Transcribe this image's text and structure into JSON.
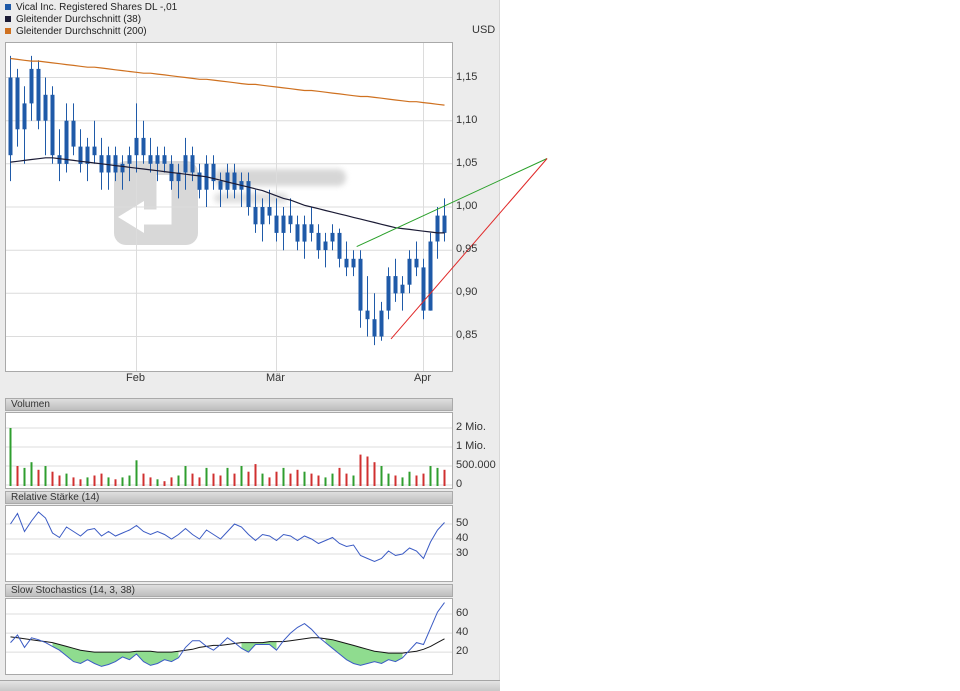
{
  "chart_data": [
    {
      "id": "price",
      "type": "candlestick",
      "title": "Vical Inc. Registered Shares DL -,01",
      "unit": "USD",
      "ylim": [
        0.81,
        1.19
      ],
      "candle_color": "#1f5aa8",
      "yticks": [
        {
          "value": 1.15,
          "label": "1,15"
        },
        {
          "value": 1.1,
          "label": "1,10"
        },
        {
          "value": 1.05,
          "label": "1,05"
        },
        {
          "value": 1.0,
          "label": "1,00"
        },
        {
          "value": 0.95,
          "label": "0,95"
        },
        {
          "value": 0.9,
          "label": "0,90"
        },
        {
          "value": 0.85,
          "label": "0,85"
        }
      ],
      "xticks": [
        {
          "i": 18,
          "label": "Feb"
        },
        {
          "i": 38,
          "label": "Mär"
        },
        {
          "i": 59,
          "label": "Apr"
        }
      ],
      "candles_ohlc": [
        [
          1.06,
          1.175,
          1.03,
          1.15
        ],
        [
          1.15,
          1.16,
          1.07,
          1.09
        ],
        [
          1.09,
          1.14,
          1.05,
          1.12
        ],
        [
          1.12,
          1.175,
          1.1,
          1.16
        ],
        [
          1.16,
          1.17,
          1.09,
          1.1
        ],
        [
          1.1,
          1.15,
          1.06,
          1.13
        ],
        [
          1.13,
          1.14,
          1.05,
          1.06
        ],
        [
          1.06,
          1.09,
          1.03,
          1.05
        ],
        [
          1.05,
          1.12,
          1.04,
          1.1
        ],
        [
          1.1,
          1.12,
          1.06,
          1.07
        ],
        [
          1.07,
          1.09,
          1.04,
          1.05
        ],
        [
          1.05,
          1.08,
          1.03,
          1.07
        ],
        [
          1.07,
          1.1,
          1.05,
          1.06
        ],
        [
          1.06,
          1.08,
          1.02,
          1.04
        ],
        [
          1.04,
          1.07,
          1.02,
          1.06
        ],
        [
          1.06,
          1.07,
          1.03,
          1.04
        ],
        [
          1.04,
          1.06,
          1.02,
          1.05
        ],
        [
          1.05,
          1.07,
          1.03,
          1.06
        ],
        [
          1.06,
          1.12,
          1.04,
          1.08
        ],
        [
          1.08,
          1.1,
          1.05,
          1.06
        ],
        [
          1.06,
          1.08,
          1.04,
          1.05
        ],
        [
          1.05,
          1.07,
          1.03,
          1.06
        ],
        [
          1.06,
          1.07,
          1.04,
          1.05
        ],
        [
          1.05,
          1.06,
          1.02,
          1.03
        ],
        [
          1.03,
          1.05,
          1.01,
          1.04
        ],
        [
          1.04,
          1.08,
          1.02,
          1.06
        ],
        [
          1.06,
          1.07,
          1.03,
          1.04
        ],
        [
          1.04,
          1.05,
          1.01,
          1.02
        ],
        [
          1.02,
          1.06,
          1.0,
          1.05
        ],
        [
          1.05,
          1.06,
          1.02,
          1.03
        ],
        [
          1.03,
          1.04,
          1.0,
          1.02
        ],
        [
          1.02,
          1.05,
          1.01,
          1.04
        ],
        [
          1.04,
          1.05,
          1.01,
          1.02
        ],
        [
          1.02,
          1.04,
          1.0,
          1.03
        ],
        [
          1.03,
          1.04,
          0.99,
          1.0
        ],
        [
          1.0,
          1.02,
          0.97,
          0.98
        ],
        [
          0.98,
          1.01,
          0.96,
          1.0
        ],
        [
          1.0,
          1.02,
          0.98,
          0.99
        ],
        [
          0.99,
          1.01,
          0.96,
          0.97
        ],
        [
          0.97,
          1.0,
          0.95,
          0.99
        ],
        [
          0.99,
          1.01,
          0.97,
          0.98
        ],
        [
          0.98,
          0.99,
          0.95,
          0.96
        ],
        [
          0.96,
          0.99,
          0.94,
          0.98
        ],
        [
          0.98,
          1.0,
          0.96,
          0.97
        ],
        [
          0.97,
          0.98,
          0.94,
          0.95
        ],
        [
          0.95,
          0.97,
          0.93,
          0.96
        ],
        [
          0.96,
          0.98,
          0.95,
          0.97
        ],
        [
          0.97,
          0.975,
          0.93,
          0.94
        ],
        [
          0.94,
          0.96,
          0.92,
          0.93
        ],
        [
          0.93,
          0.95,
          0.92,
          0.94
        ],
        [
          0.94,
          0.95,
          0.86,
          0.88
        ],
        [
          0.88,
          0.92,
          0.85,
          0.87
        ],
        [
          0.87,
          0.9,
          0.84,
          0.85
        ],
        [
          0.85,
          0.89,
          0.845,
          0.88
        ],
        [
          0.88,
          0.93,
          0.87,
          0.92
        ],
        [
          0.92,
          0.94,
          0.89,
          0.9
        ],
        [
          0.9,
          0.92,
          0.88,
          0.91
        ],
        [
          0.91,
          0.95,
          0.9,
          0.94
        ],
        [
          0.94,
          0.96,
          0.92,
          0.93
        ],
        [
          0.93,
          0.94,
          0.87,
          0.88
        ],
        [
          0.88,
          0.97,
          0.88,
          0.96
        ],
        [
          0.96,
          1.0,
          0.94,
          0.99
        ],
        [
          0.99,
          1.01,
          0.96,
          0.97
        ]
      ],
      "series": [
        {
          "name": "Gleitender Durchschnitt (38)",
          "color": "#1b1b35",
          "values": [
            1.052,
            1.053,
            1.054,
            1.055,
            1.056,
            1.057,
            1.057,
            1.056,
            1.055,
            1.054,
            1.053,
            1.052,
            1.051,
            1.05,
            1.049,
            1.048,
            1.047,
            1.046,
            1.045,
            1.044,
            1.043,
            1.042,
            1.041,
            1.04,
            1.039,
            1.038,
            1.037,
            1.036,
            1.035,
            1.033,
            1.031,
            1.029,
            1.027,
            1.025,
            1.023,
            1.021,
            1.019,
            1.016,
            1.013,
            1.01,
            1.008,
            1.005,
            1.002,
            1.0,
            0.998,
            0.996,
            0.994,
            0.992,
            0.99,
            0.988,
            0.986,
            0.984,
            0.982,
            0.98,
            0.978,
            0.976,
            0.975,
            0.974,
            0.973,
            0.972,
            0.971,
            0.97,
            0.97
          ]
        },
        {
          "name": "Gleitender Durchschnitt (200)",
          "color": "#cf7120",
          "values": [
            1.172,
            1.171,
            1.17,
            1.169,
            1.169,
            1.168,
            1.167,
            1.166,
            1.165,
            1.164,
            1.163,
            1.162,
            1.162,
            1.161,
            1.16,
            1.159,
            1.158,
            1.157,
            1.156,
            1.155,
            1.155,
            1.154,
            1.153,
            1.152,
            1.151,
            1.15,
            1.149,
            1.148,
            1.148,
            1.147,
            1.146,
            1.145,
            1.144,
            1.143,
            1.142,
            1.142,
            1.141,
            1.14,
            1.139,
            1.138,
            1.137,
            1.136,
            1.135,
            1.135,
            1.134,
            1.133,
            1.132,
            1.131,
            1.13,
            1.129,
            1.128,
            1.128,
            1.127,
            1.126,
            1.125,
            1.124,
            1.123,
            1.122,
            1.122,
            1.121,
            1.12,
            1.119,
            1.118
          ]
        }
      ],
      "trendlines": [
        {
          "color": "#2aa02a",
          "i1": 49.6,
          "p1": 0.953,
          "i2": 76.8,
          "p2": 1.055
        },
        {
          "color": "#e02828",
          "i1": 54.5,
          "p1": 0.846,
          "i2": 76.8,
          "p2": 1.055
        }
      ]
    },
    {
      "id": "volume",
      "type": "bar",
      "title": "Volumen",
      "up_color": "#2f9e2f",
      "down_color": "#d03030",
      "yticks": [
        {
          "value_mio": 2,
          "label": "2 Mio."
        },
        {
          "value_mio": 1,
          "label": "1 Mio."
        },
        {
          "value_mio": 0.5,
          "label": "500.000"
        },
        {
          "value_mio": 0,
          "label": "0"
        }
      ],
      "values_mio": [
        2.0,
        0.5,
        0.45,
        0.6,
        0.4,
        0.5,
        0.35,
        0.25,
        0.3,
        0.2,
        0.15,
        0.2,
        0.25,
        0.3,
        0.2,
        0.15,
        0.2,
        0.25,
        0.65,
        0.3,
        0.2,
        0.15,
        0.1,
        0.2,
        0.25,
        0.5,
        0.3,
        0.2,
        0.45,
        0.3,
        0.25,
        0.45,
        0.3,
        0.5,
        0.35,
        0.55,
        0.3,
        0.2,
        0.35,
        0.45,
        0.3,
        0.4,
        0.35,
        0.3,
        0.25,
        0.2,
        0.3,
        0.45,
        0.3,
        0.25,
        0.8,
        0.75,
        0.6,
        0.5,
        0.3,
        0.25,
        0.2,
        0.35,
        0.25,
        0.3,
        0.5,
        0.45,
        0.4
      ]
    },
    {
      "id": "rsi",
      "type": "line",
      "title": "Relative Stärke (14)",
      "color": "#3b5bc4",
      "ylim": [
        12,
        62
      ],
      "yticks": [
        {
          "value": 50,
          "label": "50"
        },
        {
          "value": 40,
          "label": "40"
        },
        {
          "value": 30,
          "label": "30"
        }
      ],
      "values": [
        50,
        57,
        45,
        52,
        58,
        54,
        44,
        41,
        48,
        45,
        42,
        46,
        47,
        42,
        45,
        42,
        44,
        46,
        49,
        45,
        43,
        45,
        43,
        40,
        43,
        47,
        43,
        40,
        46,
        43,
        40,
        45,
        50,
        48,
        43,
        39,
        43,
        42,
        39,
        43,
        42,
        39,
        42,
        40,
        37,
        39,
        41,
        37,
        35,
        36,
        29,
        27,
        25,
        27,
        32,
        29,
        30,
        34,
        32,
        27,
        38,
        46,
        51
      ]
    },
    {
      "id": "stoch",
      "type": "line",
      "title": "Slow Stochastics (14, 3, 38)",
      "ylim": [
        -3,
        75.8
      ],
      "fill_color": "#8fdc8f",
      "yticks": [
        {
          "value": 60,
          "label": "60"
        },
        {
          "value": 40,
          "label": "40"
        },
        {
          "value": 20,
          "label": "20"
        }
      ],
      "lines": [
        {
          "key": "k",
          "color": "#3b5bc4",
          "values": [
            30,
            38,
            25,
            35,
            33,
            30,
            26,
            22,
            16,
            10,
            8,
            12,
            8,
            5,
            7,
            10,
            15,
            12,
            18,
            10,
            6,
            8,
            12,
            10,
            14,
            25,
            32,
            32,
            26,
            22,
            28,
            35,
            30,
            24,
            20,
            28,
            28,
            28,
            22,
            32,
            40,
            46,
            50,
            44,
            36,
            30,
            24,
            18,
            12,
            8,
            6,
            8,
            10,
            8,
            12,
            10,
            14,
            22,
            30,
            28,
            45,
            62,
            72
          ]
        },
        {
          "key": "d",
          "color": "#151515",
          "values": [
            36,
            35,
            34,
            33,
            32,
            31,
            30,
            28,
            26,
            24,
            22,
            21,
            20,
            20,
            20,
            20,
            20,
            20,
            21,
            21,
            21,
            20,
            20,
            20,
            21,
            22,
            23,
            25,
            26,
            27,
            27,
            28,
            29,
            30,
            30,
            30,
            30,
            31,
            31,
            31,
            32,
            33,
            34,
            35,
            35,
            34,
            33,
            31,
            29,
            27,
            25,
            23,
            21,
            20,
            19,
            19,
            19,
            20,
            21,
            23,
            26,
            30,
            34
          ]
        }
      ]
    }
  ]
}
